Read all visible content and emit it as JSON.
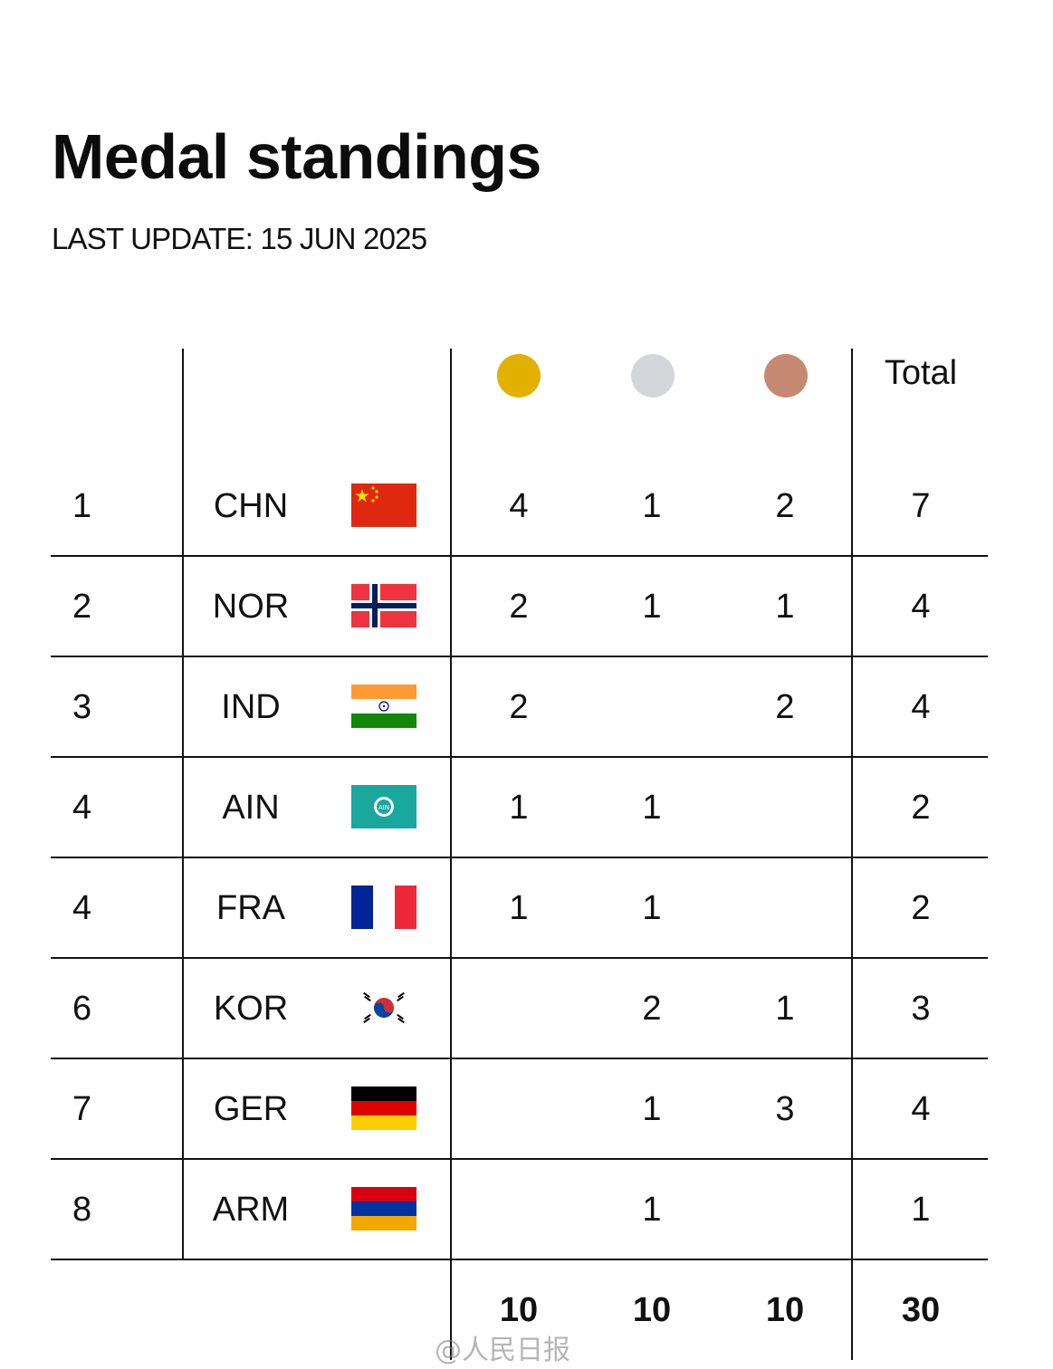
{
  "header": {
    "title": "Medal standings",
    "last_update": "LAST UPDATE: 15 JUN 2025"
  },
  "columns": {
    "gold_icon": "gold-medal-icon",
    "silver_icon": "silver-medal-icon",
    "bronze_icon": "bronze-medal-icon",
    "total_label": "Total"
  },
  "colors": {
    "gold": "#E2B100",
    "silver": "#D4D6DA",
    "bronze": "#C68A72",
    "rule": "#111111"
  },
  "rows": [
    {
      "rank": "1",
      "code": "CHN",
      "flag": "china-flag-icon",
      "gold": "4",
      "silver": "1",
      "bronze": "2",
      "total": "7"
    },
    {
      "rank": "2",
      "code": "NOR",
      "flag": "norway-flag-icon",
      "gold": "2",
      "silver": "1",
      "bronze": "1",
      "total": "4"
    },
    {
      "rank": "3",
      "code": "IND",
      "flag": "india-flag-icon",
      "gold": "2",
      "silver": "",
      "bronze": "2",
      "total": "4"
    },
    {
      "rank": "4",
      "code": "AIN",
      "flag": "ain-flag-icon",
      "gold": "1",
      "silver": "1",
      "bronze": "",
      "total": "2"
    },
    {
      "rank": "4",
      "code": "FRA",
      "flag": "france-flag-icon",
      "gold": "1",
      "silver": "1",
      "bronze": "",
      "total": "2"
    },
    {
      "rank": "6",
      "code": "KOR",
      "flag": "korea-flag-icon",
      "gold": "",
      "silver": "2",
      "bronze": "1",
      "total": "3"
    },
    {
      "rank": "7",
      "code": "GER",
      "flag": "germany-flag-icon",
      "gold": "",
      "silver": "1",
      "bronze": "3",
      "total": "4"
    },
    {
      "rank": "8",
      "code": "ARM",
      "flag": "armenia-flag-icon",
      "gold": "",
      "silver": "1",
      "bronze": "",
      "total": "1"
    }
  ],
  "totals": {
    "gold": "10",
    "silver": "10",
    "bronze": "10",
    "total": "30"
  },
  "watermark": "@人民日报"
}
